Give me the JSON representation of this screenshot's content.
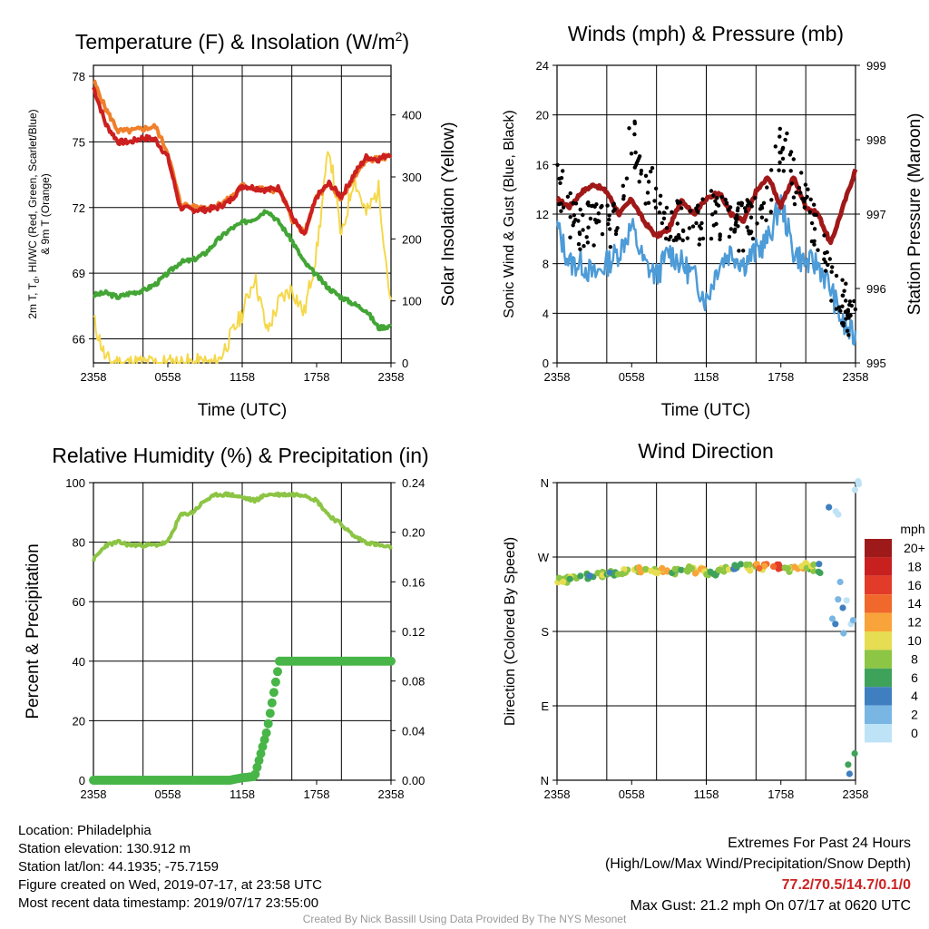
{
  "time_ticks": [
    "2358",
    "0558",
    "1158",
    "1758",
    "2358"
  ],
  "panel_temp": {
    "title": "Temperature (F) & Insolation (W/m",
    "title_sup": "2",
    "title_end": ")",
    "xlabel": "Time (UTC)",
    "ylabel_left_line1": "2m T, T",
    "ylabel_left_sub": "d",
    "ylabel_left_line1_end": ", HI/WC (Red, Green, Scarlet/Blue)",
    "ylabel_left_line2": "& 9m T (Orange)",
    "ylabel_right": "Solar Insolation (Yellow)",
    "yticks_left": [
      "66",
      "69",
      "72",
      "75",
      "78"
    ],
    "yticks_right": [
      "0",
      "100",
      "200",
      "300",
      "400"
    ]
  },
  "panel_wind": {
    "title": "Winds (mph) & Pressure (mb)",
    "xlabel": "Time (UTC)",
    "ylabel_left": "Sonic Wind & Gust (Blue, Black)",
    "ylabel_right": "Station Pressure (Maroon)",
    "yticks_left": [
      "0",
      "4",
      "8",
      "12",
      "16",
      "20",
      "24"
    ],
    "yticks_right": [
      "995",
      "996",
      "997",
      "998",
      "999"
    ]
  },
  "panel_rh": {
    "title": "Relative Humidity (%) & Precipitation (in)",
    "ylabel_left": "Percent & Precipitation",
    "yticks_left": [
      "0",
      "20",
      "40",
      "60",
      "80",
      "100"
    ],
    "yticks_right": [
      "0.00",
      "0.04",
      "0.08",
      "0.12",
      "0.16",
      "0.20",
      "0.24"
    ]
  },
  "panel_dir": {
    "title": "Wind Direction",
    "ylabel_left": "Direction (Colored By Speed)",
    "yticks_left": [
      "N",
      "E",
      "S",
      "W",
      "N"
    ],
    "legend_title": "mph",
    "legend_labels": [
      "20+",
      "18",
      "16",
      "14",
      "12",
      "10",
      "8",
      "6",
      "4",
      "2",
      "0"
    ],
    "legend_colors": [
      "#9e1a1a",
      "#c8201f",
      "#e33b2a",
      "#f0682b",
      "#f9a43a",
      "#e6dd52",
      "#8dc544",
      "#3fa25a",
      "#3f7fc0",
      "#7ab6e3",
      "#bfe3f6"
    ]
  },
  "info": {
    "location": "Location: Philadelphia",
    "elevation": "Station elevation: 130.912 m",
    "latlon": "Station lat/lon: 44.1935; -75.7159",
    "created": "Figure created on Wed, 2019-07-17, at 23:58 UTC",
    "recent": "Most recent data timestamp: 2019/07/17 23:55:00"
  },
  "extremes": {
    "title": "Extremes For Past 24 Hours",
    "subtitle": "(High/Low/Max Wind/Precipitation/Snow Depth)",
    "values": "77.2/70.5/14.7/0.1/0",
    "gust": "Max Gust: 21.2 mph On 07/17 at 0620 UTC"
  },
  "credit": "Created By Nick Bassill Using Data Provided By The NYS Mesonet",
  "colors": {
    "temp_2m": "#cc1f1f",
    "temp_9m": "#f07f2b",
    "dewpoint": "#43a535",
    "insolation": "#f5d84b",
    "wind": "#4d9bd7",
    "gust": "#000000",
    "pressure": "#a01818",
    "rh": "#8cc444",
    "precip": "#47b547",
    "extremes_values": "#cc2222",
    "credit": "#999999"
  },
  "chart_data": [
    {
      "type": "line",
      "title": "Temperature (F) & Insolation (W/m2)",
      "xlabel": "Time (UTC)",
      "ylabel": "2m T, Td, HI/WC (Red, Green, Scarlet/Blue) & 9m T (Orange)",
      "ylabel_right": "Solar Insolation (Yellow)",
      "x_unit": "hours since 2358 UTC",
      "x": [
        0,
        1,
        2,
        3,
        4,
        5,
        6,
        7,
        8,
        9,
        10,
        11,
        12,
        13,
        14,
        15,
        16,
        17,
        18,
        19,
        20,
        21,
        22,
        23,
        24
      ],
      "ylim": [
        64.9,
        78.5
      ],
      "ylim_right": [
        0,
        480
      ],
      "series": [
        {
          "name": "2m T (Red)",
          "axis": "left",
          "values": [
            77.5,
            75.8,
            75.0,
            75.0,
            75.2,
            75.1,
            74.3,
            72.0,
            71.9,
            71.9,
            72.0,
            72.3,
            73.0,
            72.9,
            72.8,
            72.9,
            71.6,
            70.7,
            72.5,
            73.1,
            72.5,
            73.5,
            74.3,
            74.2,
            74.5
          ]
        },
        {
          "name": "9m T (Orange)",
          "axis": "left",
          "values": [
            77.8,
            76.5,
            75.5,
            75.5,
            75.6,
            75.7,
            74.5,
            72.2,
            72.0,
            72.0,
            72.1,
            72.4,
            73.0,
            72.9,
            72.8,
            72.8,
            71.5,
            70.8,
            72.5,
            73.0,
            72.4,
            73.3,
            74.2,
            74.2,
            74.4
          ]
        },
        {
          "name": "Dewpoint (Green)",
          "axis": "left",
          "values": [
            68.0,
            68.1,
            67.9,
            68.1,
            68.2,
            68.5,
            69.0,
            69.5,
            69.6,
            69.9,
            70.5,
            71.0,
            71.3,
            71.5,
            71.9,
            71.3,
            70.5,
            69.5,
            68.9,
            68.3,
            67.9,
            67.6,
            67.3,
            66.5,
            66.6
          ]
        },
        {
          "name": "Solar Insolation (Yellow)",
          "axis": "right",
          "values": [
            70,
            5,
            0,
            0,
            0,
            0,
            0,
            0,
            0,
            0,
            0,
            40,
            80,
            140,
            50,
            100,
            120,
            80,
            180,
            350,
            200,
            300,
            240,
            280,
            90
          ]
        }
      ]
    },
    {
      "type": "line",
      "title": "Winds (mph) & Pressure (mb)",
      "xlabel": "Time (UTC)",
      "ylabel": "Sonic Wind & Gust (Blue, Black)",
      "ylabel_right": "Station Pressure (Maroon)",
      "x_unit": "hours since 2358 UTC",
      "x": [
        0,
        1,
        2,
        3,
        4,
        5,
        6,
        7,
        8,
        9,
        10,
        11,
        12,
        13,
        14,
        15,
        16,
        17,
        18,
        19,
        20,
        21,
        22,
        23,
        24
      ],
      "ylim": [
        0,
        24
      ],
      "ylim_right": [
        995,
        999
      ],
      "series": [
        {
          "name": "Sonic Wind (Blue)",
          "axis": "left",
          "values": [
            11,
            8,
            8,
            7,
            8,
            9,
            11,
            8,
            7,
            9,
            8,
            7,
            5,
            8,
            9,
            8,
            9,
            10,
            13,
            9,
            8,
            8,
            6,
            3,
            2
          ]
        },
        {
          "name": "Gust (Black)",
          "axis": "left",
          "values": [
            15,
            12,
            11,
            11,
            11,
            12,
            19,
            14,
            14,
            10,
            12,
            11,
            12,
            12,
            11,
            11,
            12,
            13,
            18,
            15,
            13,
            10,
            7,
            5,
            3
          ]
        },
        {
          "name": "Station Pressure (Maroon)",
          "axis": "right",
          "values": [
            997.2,
            997.1,
            997.3,
            997.4,
            997.3,
            997.0,
            997.2,
            996.9,
            996.7,
            996.8,
            997.2,
            997.0,
            997.2,
            997.3,
            997.0,
            996.9,
            997.3,
            997.5,
            997.1,
            997.5,
            997.1,
            997.0,
            996.6,
            997.1,
            997.6
          ]
        }
      ]
    },
    {
      "type": "line",
      "title": "Relative Humidity (%) & Precipitation (in)",
      "ylabel": "Percent & Precipitation",
      "x_unit": "hours since 2358 UTC",
      "x": [
        0,
        1,
        2,
        3,
        4,
        5,
        6,
        7,
        8,
        9,
        10,
        11,
        12,
        13,
        14,
        15,
        16,
        17,
        18,
        19,
        20,
        21,
        22,
        23,
        24
      ],
      "ylim": [
        0,
        100
      ],
      "ylim_right": [
        0,
        0.24
      ],
      "series": [
        {
          "name": "Relative Humidity",
          "axis": "left",
          "values": [
            74,
            79,
            80,
            79,
            79,
            79,
            80,
            89,
            90,
            94,
            96,
            96,
            95,
            94,
            96,
            96,
            96,
            96,
            94,
            89,
            86,
            82,
            80,
            79,
            78
          ]
        },
        {
          "name": "Precipitation",
          "axis": "right",
          "values": [
            0,
            0,
            0,
            0,
            0,
            0,
            0,
            0,
            0,
            0,
            0,
            0,
            0.002,
            0.003,
            0.04,
            0.096,
            0.096,
            0.096,
            0.096,
            0.096,
            0.096,
            0.096,
            0.096,
            0.096,
            0.096
          ]
        }
      ]
    },
    {
      "type": "scatter",
      "title": "Wind Direction",
      "ylabel": "Direction (Colored By Speed)",
      "x_unit": "hours since 2358 UTC",
      "y_unit": "degrees (N=0/360, E=90, S=180, W=270)",
      "ylim": [
        0,
        360
      ],
      "points": [
        {
          "x": 0.5,
          "y": 242,
          "speed": 8
        },
        {
          "x": 1.5,
          "y": 244,
          "speed": 8
        },
        {
          "x": 2.5,
          "y": 246,
          "speed": 6
        },
        {
          "x": 3.5,
          "y": 248,
          "speed": 8
        },
        {
          "x": 4.5,
          "y": 250,
          "speed": 6
        },
        {
          "x": 5.5,
          "y": 252,
          "speed": 8
        },
        {
          "x": 6.5,
          "y": 255,
          "speed": 10
        },
        {
          "x": 7.5,
          "y": 254,
          "speed": 8
        },
        {
          "x": 8.5,
          "y": 253,
          "speed": 12
        },
        {
          "x": 9.5,
          "y": 252,
          "speed": 6
        },
        {
          "x": 10.5,
          "y": 255,
          "speed": 8
        },
        {
          "x": 11.5,
          "y": 253,
          "speed": 10
        },
        {
          "x": 12.5,
          "y": 251,
          "speed": 6
        },
        {
          "x": 13.5,
          "y": 256,
          "speed": 8
        },
        {
          "x": 14.5,
          "y": 258,
          "speed": 4
        },
        {
          "x": 15.5,
          "y": 257,
          "speed": 8
        },
        {
          "x": 16.5,
          "y": 258,
          "speed": 12
        },
        {
          "x": 17.5,
          "y": 258,
          "speed": 14
        },
        {
          "x": 18.5,
          "y": 255,
          "speed": 8
        },
        {
          "x": 19.5,
          "y": 259,
          "speed": 10
        },
        {
          "x": 20.5,
          "y": 257,
          "speed": 8
        },
        {
          "x": 21.5,
          "y": 250,
          "speed": 4
        },
        {
          "x": 22.2,
          "y": 320,
          "speed": 2
        },
        {
          "x": 22.5,
          "y": 200,
          "speed": 2
        },
        {
          "x": 23.0,
          "y": 230,
          "speed": 2
        },
        {
          "x": 23.5,
          "y": 190,
          "speed": 2
        },
        {
          "x": 23.7,
          "y": 20,
          "speed": 4
        },
        {
          "x": 23.9,
          "y": 355,
          "speed": 0
        }
      ]
    }
  ]
}
